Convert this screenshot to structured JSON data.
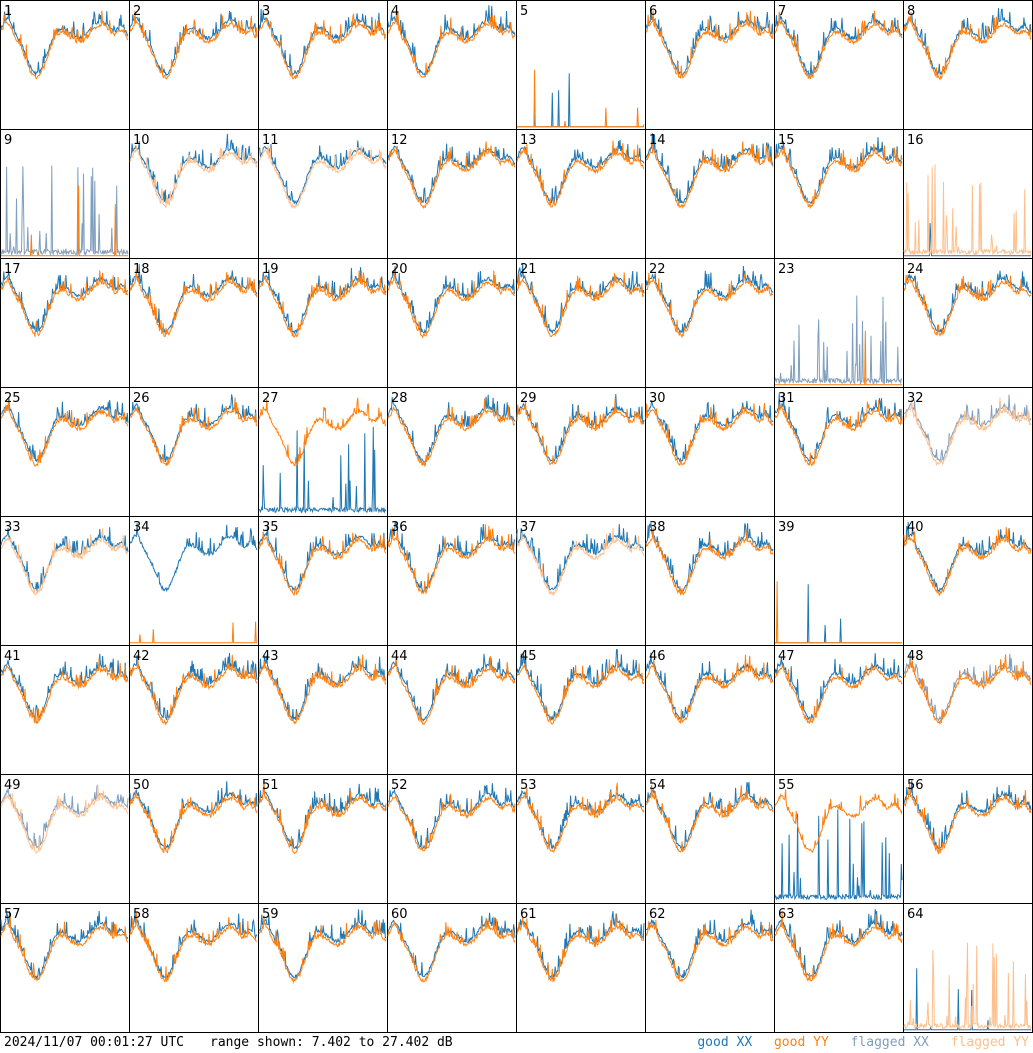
{
  "chart_data": {
    "type": "line",
    "grid": "8x8 small multiples, per-antenna spectra",
    "panels": [
      1,
      2,
      3,
      4,
      5,
      6,
      7,
      8,
      9,
      10,
      11,
      12,
      13,
      14,
      15,
      16,
      17,
      18,
      19,
      20,
      21,
      22,
      23,
      24,
      25,
      26,
      27,
      28,
      29,
      30,
      31,
      32,
      33,
      34,
      35,
      36,
      37,
      38,
      39,
      40,
      41,
      42,
      43,
      44,
      45,
      46,
      47,
      48,
      49,
      50,
      51,
      52,
      53,
      54,
      55,
      56,
      57,
      58,
      59,
      60,
      61,
      62,
      63,
      64
    ],
    "panel_labels": [
      "1",
      "2",
      "3",
      "4",
      "5",
      "6",
      "7",
      "8",
      "9",
      "10",
      "11",
      "12",
      "13",
      "14",
      "15",
      "16",
      "17",
      "18",
      "19",
      "20",
      "21",
      "22",
      "23",
      "24",
      "25",
      "26",
      "27",
      "28",
      "29",
      "30",
      "31",
      "32",
      "33",
      "34",
      "35",
      "36",
      "37",
      "38",
      "39",
      "40",
      "41",
      "42",
      "43",
      "44",
      "45",
      "46",
      "47",
      "48",
      "49",
      "50",
      "51",
      "52",
      "53",
      "54",
      "55",
      "56",
      "57",
      "58",
      "59",
      "60",
      "61",
      "62",
      "63",
      "64"
    ],
    "ylim": [
      7.402,
      27.402
    ],
    "yunit": "dB",
    "series_colors": {
      "good_xx": "#1f77b4",
      "good_yy": "#ff7f0e",
      "flagged_xx": "#7f9fbf",
      "flagged_yy": "#ffbf8c"
    },
    "flagged_xx_panels": [
      9,
      23,
      32,
      48,
      49
    ],
    "flagged_yy_panels": [
      10,
      11,
      16,
      32,
      33,
      37,
      49,
      64
    ],
    "low_xx_panels": [
      5,
      16,
      39,
      64
    ],
    "low_yy_panels": [
      5,
      9,
      23,
      34,
      39
    ],
    "spiky_xx_panels": [
      9,
      23,
      27,
      39,
      55
    ],
    "spiky_yy_panels": [
      5,
      16,
      34,
      64
    ]
  },
  "footer": {
    "timestamp": "2024/11/07 00:01:27 UTC",
    "range": "range shown: 7.402 to 27.402 dB"
  },
  "legend": {
    "good_xx": "good XX",
    "good_yy": "good YY",
    "flagged_xx": "flagged XX",
    "flagged_yy": "flagged YY"
  }
}
